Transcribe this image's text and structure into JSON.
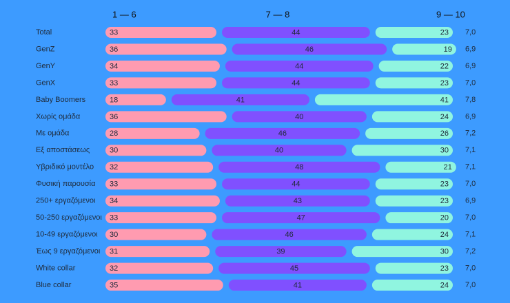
{
  "chart_data": {
    "type": "bar",
    "orientation": "horizontal",
    "stacked": true,
    "categories": [
      "Total",
      "GenZ",
      "GenY",
      "GenX",
      "Baby Boomers",
      "Χωρίς ομάδα",
      "Με ομάδα",
      "Εξ αποστάσεως",
      "Υβριδικό μοντέλο",
      "Φυσική παρουσία",
      "250+ εργαζόμενοι",
      "50-250 εργαζόμενοι",
      "10-49 εργαζόμενοι",
      "Έως 9 εργαζόμενοι",
      "White collar",
      "Blue collar"
    ],
    "series": [
      {
        "name": "1 — 6",
        "color": "#ff9bb0",
        "values": [
          33,
          36,
          34,
          33,
          18,
          36,
          28,
          30,
          32,
          33,
          34,
          33,
          30,
          31,
          32,
          35
        ]
      },
      {
        "name": "7 — 8",
        "color": "#8050ff",
        "values": [
          44,
          46,
          44,
          44,
          41,
          40,
          46,
          40,
          48,
          44,
          43,
          47,
          46,
          39,
          45,
          41
        ]
      },
      {
        "name": "9 — 10",
        "color": "#90f5e0",
        "values": [
          23,
          19,
          22,
          23,
          41,
          24,
          26,
          30,
          21,
          23,
          23,
          20,
          24,
          30,
          23,
          24
        ]
      }
    ],
    "averages": {
      "values": [
        7.0,
        6.9,
        6.9,
        7.0,
        7.8,
        6.9,
        7.2,
        7.1,
        7.1,
        7.0,
        6.9,
        7.0,
        7.1,
        7.2,
        7.0,
        7.0
      ],
      "value_labels": [
        "7,0",
        "6,9",
        "6,9",
        "7,0",
        "7,8",
        "6,9",
        "7,2",
        "7,1",
        "7,1",
        "7,0",
        "6,9",
        "7,0",
        "7,1",
        "7,2",
        "7,0",
        "7,0"
      ]
    }
  }
}
